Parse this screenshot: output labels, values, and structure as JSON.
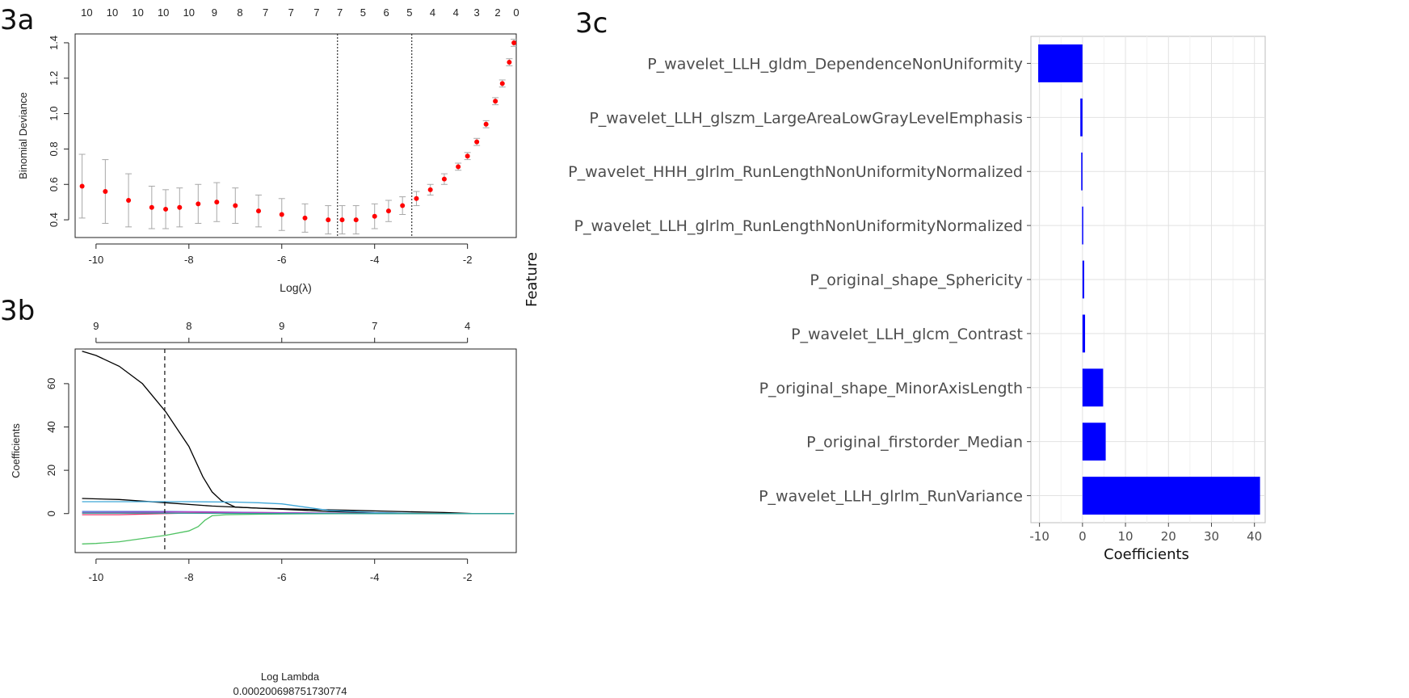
{
  "panels": {
    "a": "3a",
    "b": "3b",
    "c": "3c"
  },
  "chart_data": [
    {
      "id": "3a",
      "type": "scatter",
      "subtype": "cv-deviance-with-error-bars",
      "xlabel": "Log(λ)",
      "ylabel": "Binomial Deviance",
      "xlim": [
        -10.45,
        -0.95
      ],
      "ylim": [
        0.3,
        1.45
      ],
      "xticks": [
        -10,
        -8,
        -6,
        -4,
        -2
      ],
      "yticks": [
        0.4,
        0.6,
        0.8,
        1.0,
        1.2,
        1.4
      ],
      "ytick_labels": [
        "0.4",
        "0.6",
        "0.8",
        "1.0",
        "1.2",
        "1.4"
      ],
      "top_axis": {
        "labels": [
          "10",
          "10",
          "10",
          "10",
          "10",
          "9",
          "8",
          "7",
          "7",
          "7",
          "7",
          "5",
          "6",
          "5",
          "4",
          "4",
          "3",
          "2",
          "0"
        ],
        "x": [
          -10.2,
          -9.65,
          -9.1,
          -8.55,
          -8.0,
          -7.45,
          -6.9,
          -6.35,
          -5.8,
          -5.25,
          -4.75,
          -4.25,
          -3.75,
          -3.25,
          -2.75,
          -2.25,
          -1.8,
          -1.35,
          -0.95
        ]
      },
      "vlines": [
        -4.8,
        -3.2
      ],
      "series": [
        {
          "color": "#ff0000",
          "errorbar_color": "#a8a8a8",
          "x": [
            -10.3,
            -9.8,
            -9.3,
            -8.8,
            -8.5,
            -8.2,
            -7.8,
            -7.4,
            -7.0,
            -6.5,
            -6.0,
            -5.5,
            -5.0,
            -4.7,
            -4.4,
            -4.0,
            -3.7,
            -3.4,
            -3.1,
            -2.8,
            -2.5,
            -2.2,
            -2.0,
            -1.8,
            -1.6,
            -1.4,
            -1.25,
            -1.1,
            -1.0
          ],
          "values": [
            0.59,
            0.56,
            0.51,
            0.47,
            0.46,
            0.47,
            0.49,
            0.5,
            0.48,
            0.45,
            0.43,
            0.41,
            0.4,
            0.4,
            0.4,
            0.42,
            0.45,
            0.48,
            0.52,
            0.57,
            0.63,
            0.7,
            0.76,
            0.84,
            0.94,
            1.07,
            1.17,
            1.29,
            1.4
          ],
          "err": [
            0.18,
            0.18,
            0.15,
            0.12,
            0.11,
            0.11,
            0.11,
            0.11,
            0.1,
            0.09,
            0.09,
            0.08,
            0.08,
            0.08,
            0.08,
            0.07,
            0.06,
            0.05,
            0.04,
            0.03,
            0.03,
            0.02,
            0.02,
            0.02,
            0.02,
            0.02,
            0.02,
            0.02,
            0.02
          ]
        }
      ]
    },
    {
      "id": "3b",
      "type": "line",
      "subtype": "coefficient-paths",
      "xlabel": "Log Lambda",
      "xlabel2": "0.000200698751730774",
      "ylabel": "Coefficients",
      "xlim": [
        -10.45,
        -0.95
      ],
      "ylim": [
        -18,
        76
      ],
      "xticks": [
        -10,
        -8,
        -6,
        -4,
        -2
      ],
      "yticks": [
        0,
        20,
        40,
        60
      ],
      "top_axis": {
        "labels": [
          "9",
          "8",
          "9",
          "7",
          "4"
        ],
        "x": [
          -10,
          -8,
          -6,
          -4,
          -2
        ]
      },
      "vlines": [
        -8.52
      ],
      "series": [
        {
          "color": "#000000",
          "x": [
            -10.3,
            -10.0,
            -9.5,
            -9.0,
            -8.5,
            -8.0,
            -7.7,
            -7.5,
            -7.3,
            -7.0,
            -6.5,
            -6.0,
            -5.5,
            -5.0,
            -4.5,
            -4.0,
            -3.5,
            -3.0,
            -2.5,
            -2.0,
            -1.0
          ],
          "values": [
            75,
            73,
            68,
            60,
            47,
            31,
            17,
            10,
            6,
            3,
            2.5,
            2,
            1.5,
            1,
            0.7,
            0.4,
            0.2,
            0.1,
            0,
            0,
            0
          ]
        },
        {
          "color": "#000000",
          "x": [
            -10.3,
            -9.5,
            -8.5,
            -7.5,
            -6.5,
            -5.5,
            -4.5,
            -3.5,
            -2.5,
            -1.9,
            -1.0
          ],
          "values": [
            7,
            6.5,
            5,
            3.5,
            2.5,
            2,
            1.5,
            1,
            0.5,
            0,
            0
          ]
        },
        {
          "color": "#3ea6d8",
          "x": [
            -10.3,
            -9.0,
            -8.0,
            -7.0,
            -6.5,
            -6.0,
            -5.5,
            -5.0,
            -4.0,
            -3.0,
            -1.0
          ],
          "values": [
            5.5,
            5.5,
            5.5,
            5.3,
            5,
            4.5,
            3,
            1.5,
            0.5,
            0,
            0
          ]
        },
        {
          "color": "#e8306b",
          "x": [
            -10.3,
            -9.5,
            -8.5,
            -7.5,
            -6.5,
            -5.5,
            -4.5,
            -3.0,
            -1.0
          ],
          "values": [
            -0.5,
            -0.5,
            0,
            0.5,
            0.5,
            0.3,
            0.1,
            0,
            0
          ]
        },
        {
          "color": "#3d5fd6",
          "x": [
            -10.3,
            -9.5,
            -8.5,
            -7.5,
            -6.5,
            -5.5,
            -4.5,
            -3.0,
            -1.0
          ],
          "values": [
            1,
            1,
            1,
            0.8,
            0.5,
            0.3,
            0.1,
            0,
            0
          ]
        },
        {
          "color": "#c63ec4",
          "x": [
            -10.3,
            -9.0,
            -8.0,
            -7.0,
            -6.0,
            -5.0,
            -3.5,
            -1.0
          ],
          "values": [
            0.4,
            0.6,
            0.8,
            0.5,
            0.3,
            0.1,
            0,
            0
          ]
        },
        {
          "color": "#4fc262",
          "x": [
            -10.3,
            -10.0,
            -9.5,
            -9.0,
            -8.5,
            -8.0,
            -7.8,
            -7.65,
            -7.5,
            -7.2,
            -6.5,
            -5.5,
            -4.0,
            -1.0
          ],
          "values": [
            -14,
            -13.8,
            -13,
            -11.5,
            -10,
            -8,
            -6,
            -3,
            -1,
            -0.5,
            -0.3,
            -0.1,
            0,
            0
          ]
        },
        {
          "color": "#2e9e9a",
          "x": [
            -10.3,
            -8.5,
            -7.0,
            -6.0,
            -4.0,
            -1.0
          ],
          "values": [
            0.2,
            0.2,
            0.1,
            0.05,
            0,
            0
          ]
        }
      ]
    },
    {
      "id": "3c",
      "type": "bar",
      "orientation": "horizontal",
      "xlabel": "Coefficients",
      "ylabel": "Feature",
      "xlim": [
        -12,
        42.5
      ],
      "xticks": [
        -10,
        0,
        10,
        20,
        30,
        40
      ],
      "bar_color": "#0000ff",
      "grid": true,
      "categories": [
        "P_wavelet_LLH_gldm_DependenceNonUniformity",
        "P_wavelet_LLH_glszm_LargeAreaLowGrayLevelEmphasis",
        "P_wavelet_HHH_glrlm_RunLengthNonUniformityNormalized",
        "P_wavelet_LLH_glrlm_RunLengthNonUniformityNormalized",
        "P_original_shape_Sphericity",
        "P_wavelet_LLH_glcm_Contrast",
        "P_original_shape_MinorAxisLength",
        "P_original_firstorder_Median",
        "P_wavelet_LLH_glrlm_RunVariance"
      ],
      "values": [
        -10.3,
        -0.5,
        -0.3,
        -0.1,
        0.4,
        0.6,
        4.8,
        5.4,
        41.3
      ]
    }
  ]
}
